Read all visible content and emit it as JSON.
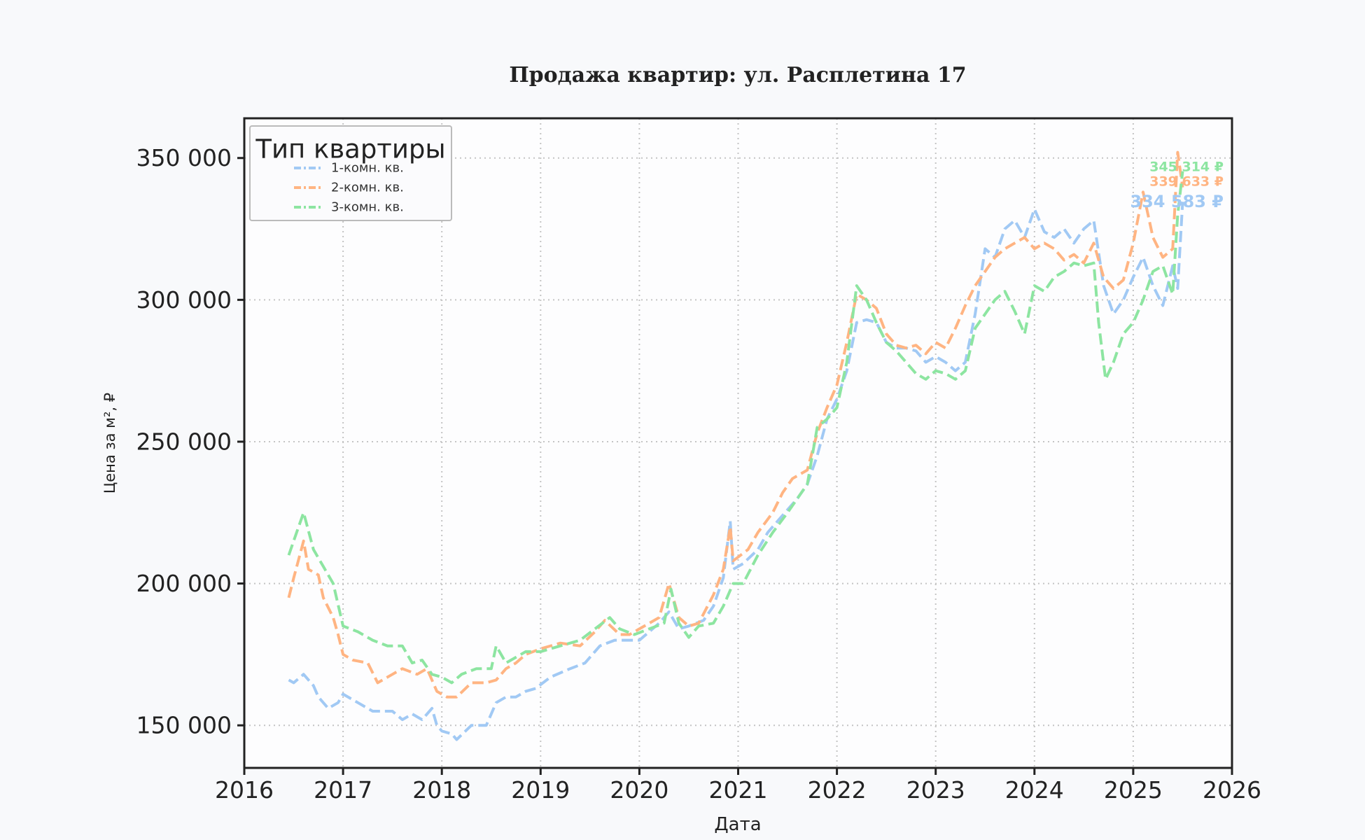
{
  "chart_data": {
    "type": "line",
    "title": "Продажа квартир: ул. Расплетина 17",
    "xlabel": "Дата",
    "ylabel": "Цена за м², ₽",
    "xlim": [
      2016,
      2026
    ],
    "ylim": [
      135000,
      364000
    ],
    "x_ticks": [
      2016,
      2017,
      2018,
      2019,
      2020,
      2021,
      2022,
      2023,
      2024,
      2025,
      2026
    ],
    "y_ticks": [
      150000,
      200000,
      250000,
      300000,
      350000
    ],
    "y_tick_labels": [
      "150 000",
      "200 000",
      "250 000",
      "300 000",
      "350 000"
    ],
    "grid": true,
    "legend": {
      "title": "Тип квартиры",
      "position": "top-left"
    },
    "series": [
      {
        "name": "1-комн. кв.",
        "color": "#a1c9f4",
        "end_label": "334 583 ₽",
        "points": [
          [
            2016.45,
            166000
          ],
          [
            2016.5,
            165000
          ],
          [
            2016.6,
            168000
          ],
          [
            2016.7,
            164000
          ],
          [
            2016.75,
            160000
          ],
          [
            2016.85,
            156000
          ],
          [
            2016.95,
            158000
          ],
          [
            2017.0,
            161000
          ],
          [
            2017.15,
            158000
          ],
          [
            2017.3,
            155000
          ],
          [
            2017.5,
            155000
          ],
          [
            2017.6,
            152000
          ],
          [
            2017.7,
            154000
          ],
          [
            2017.8,
            152000
          ],
          [
            2017.9,
            156000
          ],
          [
            2017.95,
            150000
          ],
          [
            2018.0,
            148000
          ],
          [
            2018.1,
            147000
          ],
          [
            2018.15,
            145000
          ],
          [
            2018.3,
            150000
          ],
          [
            2018.45,
            150000
          ],
          [
            2018.55,
            158000
          ],
          [
            2018.65,
            160000
          ],
          [
            2018.75,
            160000
          ],
          [
            2018.85,
            162000
          ],
          [
            2018.95,
            163000
          ],
          [
            2019.1,
            167000
          ],
          [
            2019.3,
            170000
          ],
          [
            2019.45,
            172000
          ],
          [
            2019.6,
            178000
          ],
          [
            2019.75,
            180000
          ],
          [
            2019.9,
            180000
          ],
          [
            2020.0,
            180000
          ],
          [
            2020.1,
            183000
          ],
          [
            2020.2,
            186000
          ],
          [
            2020.3,
            190000
          ],
          [
            2020.4,
            184000
          ],
          [
            2020.5,
            185000
          ],
          [
            2020.65,
            187000
          ],
          [
            2020.75,
            192000
          ],
          [
            2020.85,
            202000
          ],
          [
            2020.92,
            222000
          ],
          [
            2020.95,
            205000
          ],
          [
            2021.05,
            207000
          ],
          [
            2021.2,
            212000
          ],
          [
            2021.3,
            218000
          ],
          [
            2021.4,
            222000
          ],
          [
            2021.5,
            226000
          ],
          [
            2021.6,
            230000
          ],
          [
            2021.7,
            235000
          ],
          [
            2021.8,
            245000
          ],
          [
            2021.9,
            258000
          ],
          [
            2022.0,
            265000
          ],
          [
            2022.1,
            275000
          ],
          [
            2022.2,
            292000
          ],
          [
            2022.3,
            293000
          ],
          [
            2022.4,
            292000
          ],
          [
            2022.5,
            285000
          ],
          [
            2022.6,
            283000
          ],
          [
            2022.7,
            283000
          ],
          [
            2022.8,
            282000
          ],
          [
            2022.9,
            278000
          ],
          [
            2023.0,
            280000
          ],
          [
            2023.1,
            278000
          ],
          [
            2023.2,
            275000
          ],
          [
            2023.3,
            278000
          ],
          [
            2023.4,
            295000
          ],
          [
            2023.5,
            318000
          ],
          [
            2023.6,
            315000
          ],
          [
            2023.7,
            325000
          ],
          [
            2023.8,
            328000
          ],
          [
            2023.9,
            322000
          ],
          [
            2024.0,
            332000
          ],
          [
            2024.1,
            324000
          ],
          [
            2024.2,
            322000
          ],
          [
            2024.3,
            325000
          ],
          [
            2024.4,
            320000
          ],
          [
            2024.5,
            325000
          ],
          [
            2024.6,
            328000
          ],
          [
            2024.7,
            305000
          ],
          [
            2024.8,
            295000
          ],
          [
            2024.9,
            300000
          ],
          [
            2025.0,
            308000
          ],
          [
            2025.1,
            315000
          ],
          [
            2025.2,
            305000
          ],
          [
            2025.3,
            298000
          ],
          [
            2025.4,
            312000
          ],
          [
            2025.45,
            304000
          ],
          [
            2025.5,
            334583
          ]
        ]
      },
      {
        "name": "2-комн. кв.",
        "color": "#ffb482",
        "end_label": "339 633 ₽",
        "points": [
          [
            2016.45,
            195000
          ],
          [
            2016.5,
            202000
          ],
          [
            2016.6,
            215000
          ],
          [
            2016.65,
            205000
          ],
          [
            2016.75,
            203000
          ],
          [
            2016.8,
            195000
          ],
          [
            2016.9,
            188000
          ],
          [
            2016.95,
            182000
          ],
          [
            2017.0,
            175000
          ],
          [
            2017.1,
            173000
          ],
          [
            2017.25,
            172000
          ],
          [
            2017.35,
            165000
          ],
          [
            2017.5,
            168000
          ],
          [
            2017.6,
            170000
          ],
          [
            2017.75,
            168000
          ],
          [
            2017.85,
            170000
          ],
          [
            2017.95,
            162000
          ],
          [
            2018.05,
            160000
          ],
          [
            2018.15,
            160000
          ],
          [
            2018.3,
            165000
          ],
          [
            2018.45,
            165000
          ],
          [
            2018.55,
            166000
          ],
          [
            2018.65,
            170000
          ],
          [
            2018.75,
            172000
          ],
          [
            2018.85,
            175000
          ],
          [
            2019.0,
            177000
          ],
          [
            2019.2,
            179000
          ],
          [
            2019.4,
            178000
          ],
          [
            2019.55,
            183000
          ],
          [
            2019.65,
            187000
          ],
          [
            2019.8,
            182000
          ],
          [
            2019.9,
            182000
          ],
          [
            2020.0,
            184000
          ],
          [
            2020.2,
            188000
          ],
          [
            2020.3,
            200000
          ],
          [
            2020.4,
            188000
          ],
          [
            2020.5,
            185000
          ],
          [
            2020.6,
            186000
          ],
          [
            2020.75,
            196000
          ],
          [
            2020.85,
            205000
          ],
          [
            2020.92,
            220000
          ],
          [
            2020.95,
            208000
          ],
          [
            2021.1,
            212000
          ],
          [
            2021.2,
            218000
          ],
          [
            2021.35,
            225000
          ],
          [
            2021.45,
            232000
          ],
          [
            2021.55,
            237000
          ],
          [
            2021.7,
            240000
          ],
          [
            2021.8,
            253000
          ],
          [
            2021.9,
            262000
          ],
          [
            2022.0,
            270000
          ],
          [
            2022.1,
            285000
          ],
          [
            2022.2,
            302000
          ],
          [
            2022.3,
            300000
          ],
          [
            2022.4,
            297000
          ],
          [
            2022.5,
            288000
          ],
          [
            2022.6,
            284000
          ],
          [
            2022.7,
            283000
          ],
          [
            2022.8,
            284000
          ],
          [
            2022.9,
            281000
          ],
          [
            2023.0,
            285000
          ],
          [
            2023.1,
            283000
          ],
          [
            2023.2,
            290000
          ],
          [
            2023.3,
            298000
          ],
          [
            2023.4,
            305000
          ],
          [
            2023.5,
            310000
          ],
          [
            2023.6,
            315000
          ],
          [
            2023.7,
            318000
          ],
          [
            2023.8,
            320000
          ],
          [
            2023.9,
            322000
          ],
          [
            2024.0,
            318000
          ],
          [
            2024.1,
            320000
          ],
          [
            2024.2,
            318000
          ],
          [
            2024.3,
            314000
          ],
          [
            2024.4,
            316000
          ],
          [
            2024.5,
            313000
          ],
          [
            2024.6,
            320000
          ],
          [
            2024.7,
            308000
          ],
          [
            2024.8,
            304000
          ],
          [
            2024.9,
            307000
          ],
          [
            2025.0,
            320000
          ],
          [
            2025.1,
            338000
          ],
          [
            2025.2,
            322000
          ],
          [
            2025.3,
            315000
          ],
          [
            2025.4,
            318000
          ],
          [
            2025.45,
            352000
          ],
          [
            2025.5,
            339633
          ]
        ]
      },
      {
        "name": "3-комн. кв.",
        "color": "#8de5a1",
        "end_label": "345 314 ₽",
        "points": [
          [
            2016.45,
            210000
          ],
          [
            2016.55,
            220000
          ],
          [
            2016.6,
            225000
          ],
          [
            2016.7,
            212000
          ],
          [
            2016.8,
            206000
          ],
          [
            2016.9,
            200000
          ],
          [
            2017.0,
            185000
          ],
          [
            2017.15,
            183000
          ],
          [
            2017.3,
            180000
          ],
          [
            2017.45,
            178000
          ],
          [
            2017.6,
            178000
          ],
          [
            2017.7,
            172000
          ],
          [
            2017.8,
            173000
          ],
          [
            2017.9,
            168000
          ],
          [
            2018.0,
            167000
          ],
          [
            2018.1,
            165000
          ],
          [
            2018.2,
            168000
          ],
          [
            2018.35,
            170000
          ],
          [
            2018.5,
            170000
          ],
          [
            2018.55,
            178000
          ],
          [
            2018.65,
            172000
          ],
          [
            2018.75,
            174000
          ],
          [
            2018.85,
            176000
          ],
          [
            2019.0,
            176000
          ],
          [
            2019.2,
            178000
          ],
          [
            2019.4,
            180000
          ],
          [
            2019.55,
            184000
          ],
          [
            2019.7,
            188000
          ],
          [
            2019.8,
            184000
          ],
          [
            2019.95,
            182000
          ],
          [
            2020.1,
            184000
          ],
          [
            2020.25,
            186000
          ],
          [
            2020.32,
            198000
          ],
          [
            2020.4,
            186000
          ],
          [
            2020.5,
            181000
          ],
          [
            2020.6,
            185000
          ],
          [
            2020.75,
            186000
          ],
          [
            2020.85,
            192000
          ],
          [
            2020.95,
            200000
          ],
          [
            2021.05,
            200000
          ],
          [
            2021.2,
            210000
          ],
          [
            2021.35,
            218000
          ],
          [
            2021.5,
            225000
          ],
          [
            2021.6,
            230000
          ],
          [
            2021.7,
            235000
          ],
          [
            2021.8,
            255000
          ],
          [
            2021.9,
            258000
          ],
          [
            2022.0,
            262000
          ],
          [
            2022.1,
            278000
          ],
          [
            2022.2,
            305000
          ],
          [
            2022.3,
            300000
          ],
          [
            2022.4,
            292000
          ],
          [
            2022.5,
            285000
          ],
          [
            2022.6,
            282000
          ],
          [
            2022.7,
            278000
          ],
          [
            2022.8,
            274000
          ],
          [
            2022.9,
            272000
          ],
          [
            2023.0,
            275000
          ],
          [
            2023.1,
            274000
          ],
          [
            2023.2,
            272000
          ],
          [
            2023.3,
            275000
          ],
          [
            2023.4,
            290000
          ],
          [
            2023.5,
            295000
          ],
          [
            2023.6,
            300000
          ],
          [
            2023.7,
            303000
          ],
          [
            2023.8,
            296000
          ],
          [
            2023.9,
            288000
          ],
          [
            2024.0,
            305000
          ],
          [
            2024.1,
            303000
          ],
          [
            2024.2,
            308000
          ],
          [
            2024.3,
            310000
          ],
          [
            2024.4,
            313000
          ],
          [
            2024.5,
            312000
          ],
          [
            2024.6,
            313000
          ],
          [
            2024.65,
            292000
          ],
          [
            2024.72,
            272000
          ],
          [
            2024.8,
            278000
          ],
          [
            2024.9,
            288000
          ],
          [
            2025.0,
            292000
          ],
          [
            2025.1,
            300000
          ],
          [
            2025.2,
            310000
          ],
          [
            2025.3,
            312000
          ],
          [
            2025.4,
            302000
          ],
          [
            2025.45,
            330000
          ],
          [
            2025.5,
            345314
          ]
        ]
      }
    ]
  }
}
